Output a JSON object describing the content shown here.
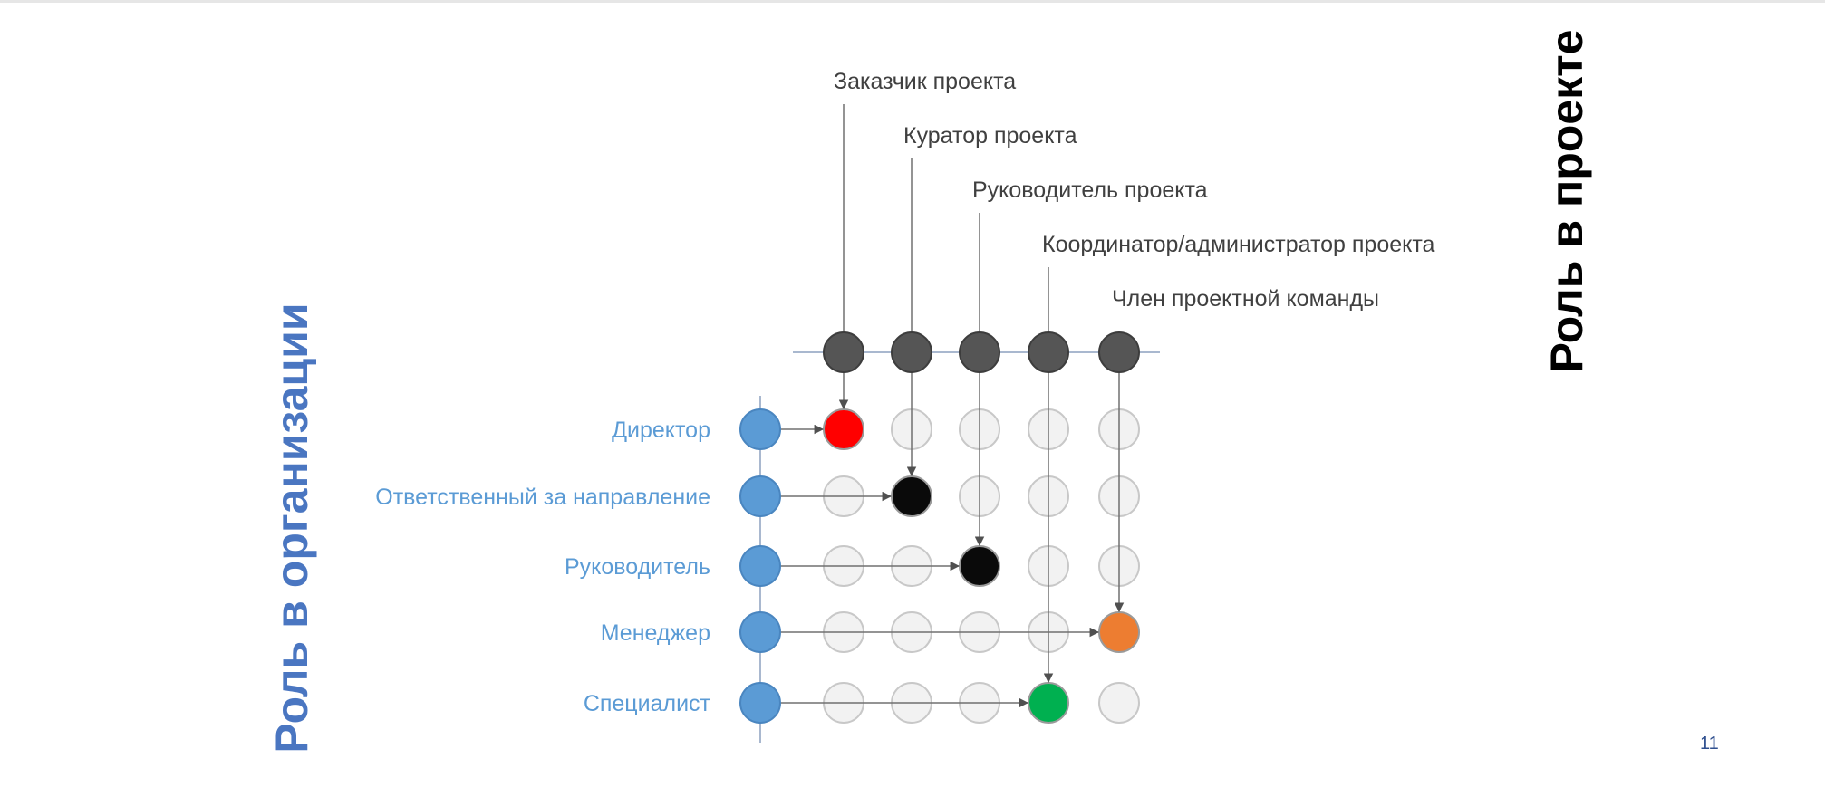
{
  "axis_titles": {
    "organization_role": "Роль в организации",
    "project_role": "Роль в проекте"
  },
  "project_roles": [
    {
      "label": "Заказчик проекта",
      "assigned_org_role": "Директор"
    },
    {
      "label": "Куратор проекта",
      "assigned_org_role": "Ответственный за направление"
    },
    {
      "label": "Руководитель проекта",
      "assigned_org_role": "Руководитель"
    },
    {
      "label": "Координатор/администратор проекта",
      "assigned_org_role": "Специалист"
    },
    {
      "label": "Член проектной команды",
      "assigned_org_role": "Менеджер"
    }
  ],
  "organization_roles": [
    {
      "label": "Директор",
      "assigned_project_role": "Заказчик проекта",
      "highlight_color": "#ff0000"
    },
    {
      "label": "Ответственный за направление",
      "assigned_project_role": "Куратор проекта",
      "highlight_color": "#0a0a0a"
    },
    {
      "label": "Руководитель",
      "assigned_project_role": "Руководитель проекта",
      "highlight_color": "#0a0a0a"
    },
    {
      "label": "Менеджер",
      "assigned_project_role": "Член проектной команды",
      "highlight_color": "#ed7d31"
    },
    {
      "label": "Специалист",
      "assigned_project_role": "Координатор/администратор проекта",
      "highlight_color": "#00b050"
    }
  ],
  "colors": {
    "org_role_node": "#5b9bd5",
    "project_role_node": "#555555",
    "inactive_node": "#f2f2f2",
    "org_label_text": "#5b9bd5",
    "project_label_text": "#404040",
    "connector_line": "#707070",
    "org_title_text": "#4a76c1",
    "project_title_text": "#000000"
  },
  "page_number": "11"
}
